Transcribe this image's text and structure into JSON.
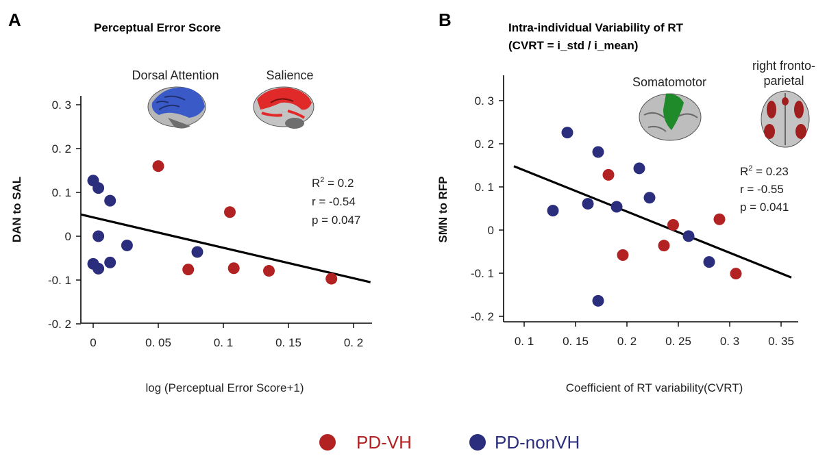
{
  "colors": {
    "pd_vh": "#b22222",
    "pd_nonvh": "#2b2d7d",
    "fit_line": "#000000",
    "axis": "#000000"
  },
  "legend": {
    "items": [
      {
        "label": "PD-VH",
        "color": "#b22222"
      },
      {
        "label": "PD-nonVH",
        "color": "#2b2d7d"
      }
    ]
  },
  "panels": {
    "A": {
      "letter": "A",
      "title": "Perceptual Error Score",
      "network_labels": [
        "Dorsal Attention",
        "Salience"
      ],
      "stats": {
        "r2_prefix": "R",
        "r2_sup": "2",
        "r2_value": " = 0.2",
        "r": "r = -0.54",
        "p": "p = 0.047"
      }
    },
    "B": {
      "letter": "B",
      "title_line1": "Intra-individual Variability of RT",
      "title_line2": "(CVRT = i_std / i_mean)",
      "network_labels": [
        "Somatomotor",
        "right fronto-",
        "parietal"
      ],
      "stats": {
        "r2_prefix": "R",
        "r2_sup": "2",
        "r2_value": " = 0.23",
        "r": "r = -0.55",
        "p": "p = 0.041"
      }
    }
  },
  "chart_data": [
    {
      "type": "scatter",
      "title": "Perceptual Error Score",
      "xlabel": "log (Perceptual Error Score+1)",
      "ylabel": "DAN to SAL",
      "xlim": [
        -0.01,
        0.215
      ],
      "ylim": [
        -0.2,
        0.35
      ],
      "xticks": [
        0,
        0.05,
        0.1,
        0.15,
        0.2
      ],
      "xtick_labels": [
        "0",
        "0. 05",
        "0. 1",
        "0. 15",
        "0. 2"
      ],
      "yticks": [
        0.3,
        0.2,
        0.1,
        0,
        -0.1,
        -0.2
      ],
      "ytick_labels": [
        "0. 3",
        "0. 2",
        "0. 1",
        "0",
        "-0. 1",
        "-0. 2"
      ],
      "series": [
        {
          "name": "PD-VH",
          "points": [
            [
              0.05,
              0.16
            ],
            [
              0.105,
              0.055
            ],
            [
              0.073,
              -0.076
            ],
            [
              0.108,
              -0.073
            ],
            [
              0.135,
              -0.079
            ],
            [
              0.183,
              -0.097
            ]
          ]
        },
        {
          "name": "PD-nonVH",
          "points": [
            [
              0.0,
              0.127
            ],
            [
              0.004,
              0.11
            ],
            [
              0.013,
              0.081
            ],
            [
              0.004,
              0.0
            ],
            [
              0.026,
              -0.021
            ],
            [
              0.0,
              -0.063
            ],
            [
              0.004,
              -0.074
            ],
            [
              0.013,
              -0.06
            ],
            [
              0.08,
              -0.036
            ]
          ]
        }
      ],
      "fit_line": {
        "x": [
          -0.01,
          0.213
        ],
        "y": [
          0.05,
          -0.105
        ]
      },
      "grid": false
    },
    {
      "type": "scatter",
      "title": "Intra-individual Variability of RT (CVRT = i_std / i_mean)",
      "xlabel": "Coefficient of RT variability(CVRT)",
      "ylabel": "SMN to RFP",
      "xlim": [
        0.09,
        0.36
      ],
      "ylim": [
        -0.2,
        0.35
      ],
      "xticks": [
        0.1,
        0.15,
        0.2,
        0.25,
        0.3,
        0.35
      ],
      "xtick_labels": [
        "0. 1",
        "0. 15",
        "0. 2",
        "0. 25",
        "0. 3",
        "0. 35"
      ],
      "yticks": [
        0.3,
        0.2,
        0.1,
        0,
        -0.1,
        -0.2
      ],
      "ytick_labels": [
        "0. 3",
        "0. 2",
        "0. 1",
        "0",
        "-0. 1",
        "-0. 2"
      ],
      "series": [
        {
          "name": "PD-VH",
          "points": [
            [
              0.182,
              0.128
            ],
            [
              0.196,
              -0.058
            ],
            [
              0.236,
              -0.036
            ],
            [
              0.245,
              0.012
            ],
            [
              0.29,
              0.025
            ],
            [
              0.306,
              -0.101
            ]
          ]
        },
        {
          "name": "PD-nonVH",
          "points": [
            [
              0.142,
              0.226
            ],
            [
              0.172,
              0.181
            ],
            [
              0.212,
              0.143
            ],
            [
              0.128,
              0.045
            ],
            [
              0.162,
              0.061
            ],
            [
              0.19,
              0.054
            ],
            [
              0.222,
              0.075
            ],
            [
              0.26,
              -0.014
            ],
            [
              0.28,
              -0.074
            ],
            [
              0.172,
              -0.164
            ]
          ]
        }
      ],
      "fit_line": {
        "x": [
          0.09,
          0.36
        ],
        "y": [
          0.148,
          -0.11
        ]
      },
      "grid": false
    }
  ]
}
